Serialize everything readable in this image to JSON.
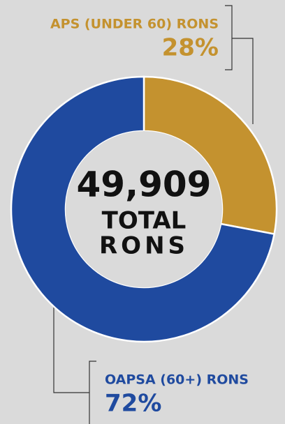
{
  "chart_data": {
    "type": "pie",
    "donut": true,
    "categories": [
      "APS (UNDER 60) RONS",
      "OAPSA (60+) RONS"
    ],
    "values": [
      28,
      72
    ],
    "value_labels": [
      "28%",
      "72%"
    ],
    "colors": [
      "#c4922f",
      "#1f4a9f"
    ],
    "center_label": "49,909",
    "center_text": [
      "TOTAL",
      "RONS"
    ]
  }
}
